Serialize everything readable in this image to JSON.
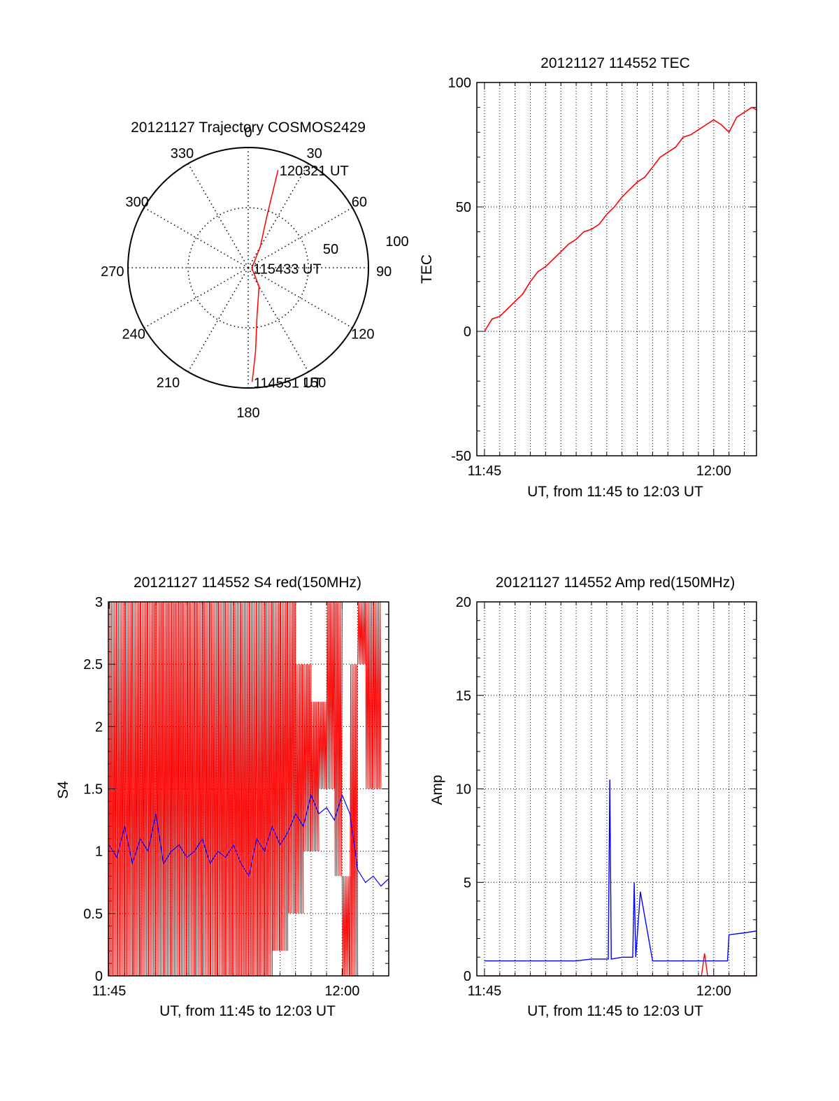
{
  "chart_data": [
    {
      "type": "polar",
      "title": "20121127 Trajectory COSMOS2429",
      "azimuth_labels": [
        "0",
        "30",
        "60",
        "90",
        "120",
        "150",
        "180",
        "210",
        "240",
        "270",
        "300",
        "330"
      ],
      "radius_labels": [
        "50",
        "100"
      ],
      "rlim": [
        0,
        100
      ],
      "grid": true,
      "track_color": "#ff0000",
      "track": [
        {
          "az": 178,
          "r": 95
        },
        {
          "az": 175,
          "r": 70
        },
        {
          "az": 170,
          "r": 42
        },
        {
          "az": 150,
          "r": 18
        },
        {
          "az": 95,
          "r": 3
        },
        {
          "az": 30,
          "r": 20
        },
        {
          "az": 20,
          "r": 45
        },
        {
          "az": 17,
          "r": 85
        }
      ],
      "annotations": [
        {
          "text": "120321 UT",
          "az": 17,
          "r": 85
        },
        {
          "text": "115433 UT",
          "az": 95,
          "r": 3
        },
        {
          "text": "114551 UT",
          "az": 178,
          "r": 95
        }
      ]
    },
    {
      "type": "line",
      "title": "20121127 114552 TEC",
      "xlabel": "UT, from 11:45 to 12:03 UT",
      "ylabel": "TEC",
      "xlim": [
        -0.5,
        17.8
      ],
      "ylim": [
        -50,
        100
      ],
      "x_ticks": [
        {
          "value": 0,
          "label": "11:45"
        },
        {
          "value": 15,
          "label": "12:00"
        }
      ],
      "y_ticks": [
        -50,
        0,
        50,
        100
      ],
      "grid": true,
      "series": [
        {
          "color": "#ff0000",
          "x": [
            0,
            0.5,
            1,
            1.5,
            2,
            2.5,
            3,
            3.5,
            4,
            4.5,
            5,
            5.5,
            6,
            6.5,
            7,
            7.5,
            8,
            8.5,
            9,
            9.5,
            10,
            10.5,
            11,
            11.5,
            12,
            12.5,
            13,
            13.5,
            14,
            14.5,
            15,
            15.5,
            16,
            16.5,
            17,
            17.5,
            17.8
          ],
          "values": [
            0,
            5,
            6,
            9,
            12,
            15,
            20,
            24,
            26,
            29,
            32,
            35,
            37,
            40,
            41,
            43,
            47,
            50,
            54,
            57,
            60,
            62,
            66,
            70,
            72,
            74,
            78,
            79,
            81,
            83,
            85,
            83,
            80,
            86,
            88,
            90,
            89
          ]
        }
      ]
    },
    {
      "type": "line",
      "title": "20121127 114552 S4 red(150MHz)",
      "xlabel": "UT, from 11:45 to 12:03 UT",
      "ylabel": "S4",
      "xlim": [
        -0.05,
        18
      ],
      "ylim": [
        0,
        3
      ],
      "x_ticks": [
        {
          "value": 0,
          "label": "11:45"
        },
        {
          "value": 15,
          "label": "12:00"
        }
      ],
      "y_ticks": [
        0,
        0.5,
        1,
        1.5,
        2,
        2.5,
        3
      ],
      "grid": true,
      "series": [
        {
          "color": "#ff0000",
          "x": [
            0,
            0.5,
            1,
            1.5,
            2,
            2.5,
            3,
            3.5,
            4,
            4.5,
            5,
            5.5,
            6,
            6.5,
            7,
            7.5,
            8,
            8.5,
            9,
            9.5,
            10,
            10.5,
            11,
            11.5,
            12,
            12.5,
            13,
            13.5,
            14,
            14.5,
            15,
            15.5,
            16,
            16.5,
            17,
            17.5,
            18
          ],
          "values": [
            0,
            3,
            0,
            3,
            0,
            3,
            0,
            3,
            0,
            3,
            0,
            3,
            0,
            3,
            0,
            3,
            0,
            3,
            0,
            3,
            0,
            3,
            0.2,
            3,
            0.5,
            2.5,
            1,
            2.2,
            1.5,
            3,
            0.8,
            0,
            2.5,
            3,
            1.5,
            3,
            3
          ]
        },
        {
          "color": "#0000ff",
          "x": [
            0,
            0.5,
            1,
            1.5,
            2,
            2.5,
            3,
            3.5,
            4,
            4.5,
            5,
            5.5,
            6,
            6.5,
            7,
            7.5,
            8,
            8.5,
            9,
            9.5,
            10,
            10.5,
            11,
            11.5,
            12,
            12.5,
            13,
            13.5,
            14,
            14.5,
            15,
            15.5,
            16,
            16.5,
            17,
            17.5,
            18
          ],
          "values": [
            1.05,
            0.95,
            1.2,
            0.9,
            1.1,
            1.0,
            1.3,
            0.9,
            1.0,
            1.05,
            0.95,
            1.0,
            1.1,
            0.9,
            1.0,
            0.95,
            1.05,
            0.9,
            0.8,
            1.1,
            1.0,
            1.2,
            1.05,
            1.15,
            1.3,
            1.2,
            1.45,
            1.3,
            1.35,
            1.25,
            1.45,
            1.3,
            0.85,
            0.75,
            0.8,
            0.72,
            0.78
          ]
        }
      ]
    },
    {
      "type": "line",
      "title": "20121127 114552 Amp red(150MHz)",
      "xlabel": "UT, from 11:45 to 12:03 UT",
      "ylabel": "Amp",
      "xlim": [
        -0.5,
        17.8
      ],
      "ylim": [
        0,
        20
      ],
      "x_ticks": [
        {
          "value": 0,
          "label": "11:45"
        },
        {
          "value": 15,
          "label": "12:00"
        }
      ],
      "y_ticks": [
        0,
        5,
        10,
        15,
        20
      ],
      "grid": true,
      "series": [
        {
          "color": "#ff0000",
          "x": [
            0,
            14.2,
            14.4,
            14.6,
            17.8
          ],
          "values": [
            0,
            0,
            1.2,
            0,
            0
          ]
        },
        {
          "color": "#0000ff",
          "x": [
            0,
            1,
            2,
            3,
            4,
            5,
            6,
            7,
            8.1,
            8.2,
            8.3,
            9,
            9.7,
            9.8,
            9.9,
            10.2,
            11,
            12,
            13,
            14,
            15,
            15.9,
            16,
            17,
            17.8
          ],
          "values": [
            0.8,
            0.8,
            0.8,
            0.8,
            0.8,
            0.8,
            0.8,
            0.9,
            0.9,
            10.5,
            0.9,
            1.0,
            1.0,
            5.0,
            1.0,
            4.5,
            0.8,
            0.8,
            0.8,
            0.8,
            0.8,
            0.8,
            2.2,
            2.3,
            2.4
          ]
        }
      ]
    }
  ]
}
